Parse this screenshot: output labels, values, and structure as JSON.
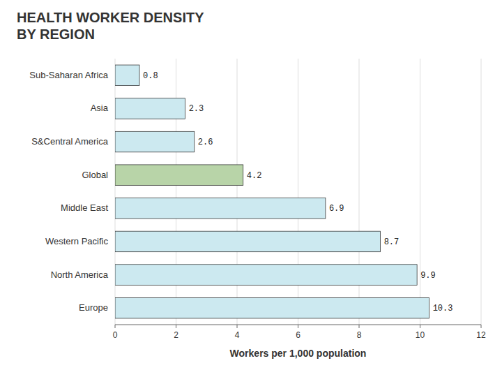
{
  "chart_data": {
    "type": "bar",
    "orientation": "horizontal",
    "title": "HEALTH WORKER DENSITY\nBY REGION",
    "categories": [
      "Sub-Saharan Africa",
      "Asia",
      "S&Central America",
      "Global",
      "Middle East",
      "Western Pacific",
      "North America",
      "Europe"
    ],
    "values": [
      0.8,
      2.3,
      2.6,
      4.2,
      6.9,
      8.7,
      9.9,
      10.3
    ],
    "colors": [
      "#cce9f0",
      "#cce9f0",
      "#cce9f0",
      "#b8d4a8",
      "#cce9f0",
      "#cce9f0",
      "#cce9f0",
      "#cce9f0"
    ],
    "x_label": "Workers per 1,000 population",
    "xlim": [
      0,
      12
    ],
    "xticks": [
      0,
      2,
      4,
      6,
      8,
      10,
      12
    ],
    "grid": true,
    "data_labels": true
  }
}
